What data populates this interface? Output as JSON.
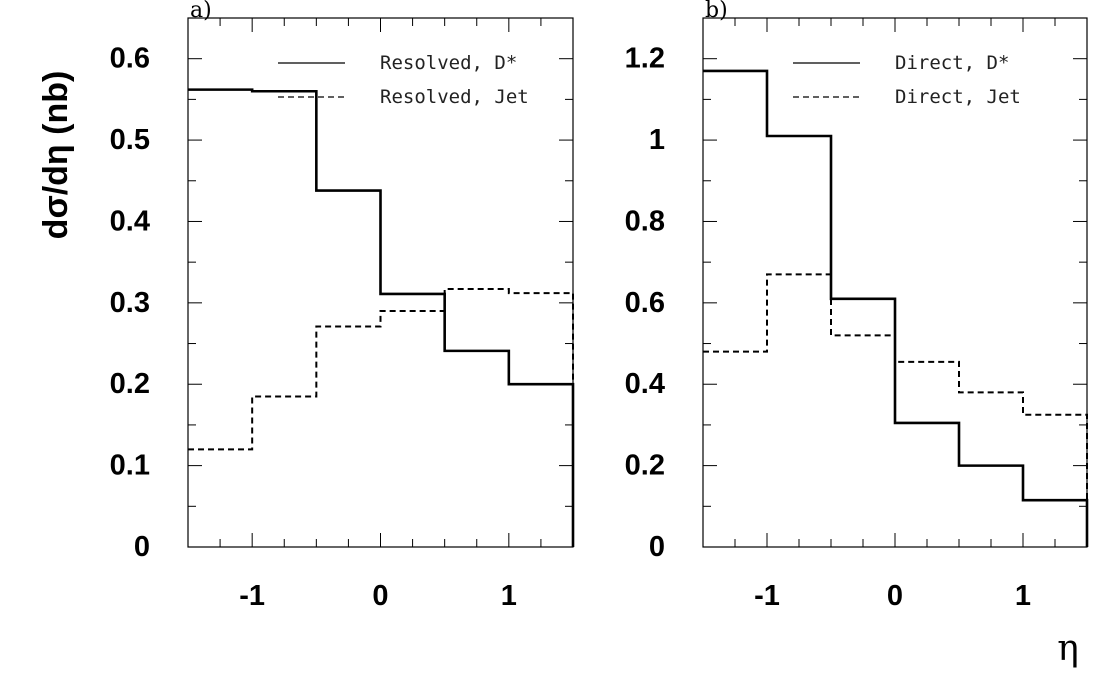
{
  "ylabel": "dσ/dη (nb)",
  "xlabel": "η",
  "chart_data": [
    {
      "type": "line",
      "panel_label": "a)",
      "xlim": [
        -1.5,
        1.5
      ],
      "ylim": [
        0,
        0.65
      ],
      "x_ticks": [
        "-1",
        "0",
        "1"
      ],
      "x_tick_values": [
        -1,
        0,
        1
      ],
      "y_ticks": [
        "0",
        "0.1",
        "0.2",
        "0.3",
        "0.4",
        "0.5",
        "0.6"
      ],
      "y_tick_values": [
        0,
        0.1,
        0.2,
        0.3,
        0.4,
        0.5,
        0.6
      ],
      "bin_edges": [
        -1.5,
        -1,
        -0.5,
        0,
        0.5,
        1,
        1.5
      ],
      "series": [
        {
          "name": "Resolved, D*",
          "style": "solid",
          "values": [
            0.562,
            0.56,
            0.438,
            0.311,
            0.241,
            0.2
          ]
        },
        {
          "name": "Resolved, Jet",
          "style": "dashed",
          "values": [
            0.12,
            0.185,
            0.271,
            0.29,
            0.317,
            0.312
          ]
        }
      ],
      "legend_position": "top-right",
      "grid": false
    },
    {
      "type": "line",
      "panel_label": "b)",
      "xlim": [
        -1.5,
        1.5
      ],
      "ylim": [
        0,
        1.3
      ],
      "x_ticks": [
        "-1",
        "0",
        "1"
      ],
      "x_tick_values": [
        -1,
        0,
        1
      ],
      "y_ticks": [
        "0",
        "0.2",
        "0.4",
        "0.6",
        "0.8",
        "1",
        "1.2"
      ],
      "y_tick_values": [
        0,
        0.2,
        0.4,
        0.6,
        0.8,
        1,
        1.2
      ],
      "bin_edges": [
        -1.5,
        -1,
        -0.5,
        0,
        0.5,
        1,
        1.5
      ],
      "series": [
        {
          "name": "Direct, D*",
          "style": "solid",
          "values": [
            1.17,
            1.01,
            0.61,
            0.305,
            0.2,
            0.115
          ]
        },
        {
          "name": "Direct, Jet",
          "style": "dashed",
          "values": [
            0.48,
            0.67,
            0.52,
            0.455,
            0.38,
            0.325
          ]
        }
      ],
      "legend_position": "top-right",
      "grid": false
    }
  ]
}
